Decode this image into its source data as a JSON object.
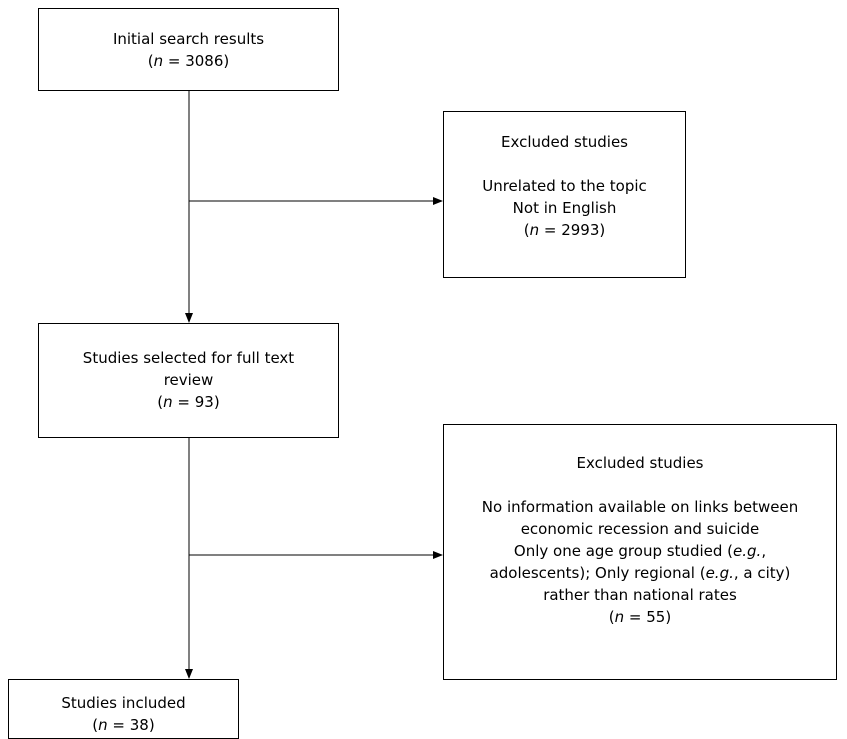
{
  "nodes": {
    "initial": {
      "title": "Initial search results",
      "count_label": "n",
      "count_value": "3086"
    },
    "excluded_1": {
      "title": "Excluded studies",
      "reasons": [
        "Unrelated to the topic",
        "Not in English"
      ],
      "count_label": "n",
      "count_value": "2993"
    },
    "full_text": {
      "title_line1": "Studies selected for full text",
      "title_line2": "review",
      "count_label": "n",
      "count_value": "93"
    },
    "excluded_2": {
      "title": "Excluded studies",
      "reason_1a": "No information available on links between",
      "reason_1b": "economic recession and suicide",
      "reason_2_pre": "Only one age group studied (",
      "reason_2_eg": "e.g.",
      "reason_2_post": ",",
      "reason_3_pre": "adolescents); Only regional (",
      "reason_3_eg": "e.g.",
      "reason_3_post": ", a city)",
      "reason_4": "rather than national rates",
      "count_label": "n",
      "count_value": "55"
    },
    "included": {
      "title": "Studies included",
      "count_label": "n",
      "count_value": "38"
    }
  }
}
